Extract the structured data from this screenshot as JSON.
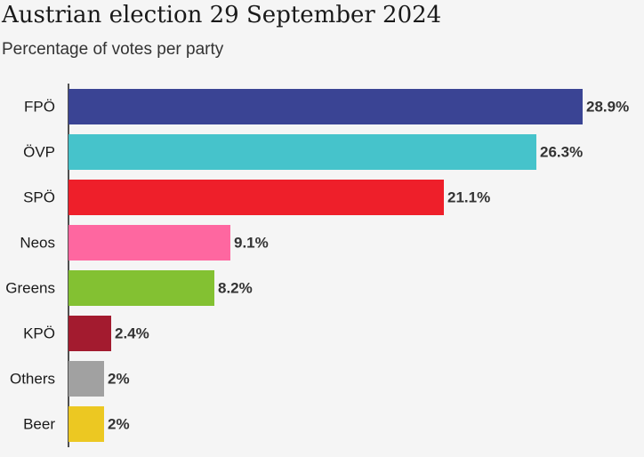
{
  "chart_data": {
    "type": "bar",
    "orientation": "horizontal",
    "title": "Austrian election 29 September 2024",
    "subtitle": "Percentage of votes per party",
    "categories": [
      "FPÖ",
      "ÖVP",
      "SPÖ",
      "Neos",
      "Greens",
      "KPÖ",
      "Others",
      "Beer"
    ],
    "values": [
      28.9,
      26.3,
      21.1,
      9.1,
      8.2,
      2.4,
      2,
      2
    ],
    "value_labels": [
      "28.9%",
      "26.3%",
      "21.1%",
      "9.1%",
      "8.2%",
      "2.4%",
      "2%",
      "2%"
    ],
    "colors": [
      "#3a4494",
      "#46c3cb",
      "#ee1f2a",
      "#fe67a0",
      "#83c132",
      "#a31b2f",
      "#a1a1a1",
      "#ecc822"
    ],
    "xlim": [
      0,
      28.9
    ],
    "grid": false,
    "legend": "none",
    "xlabel": "",
    "ylabel": ""
  }
}
